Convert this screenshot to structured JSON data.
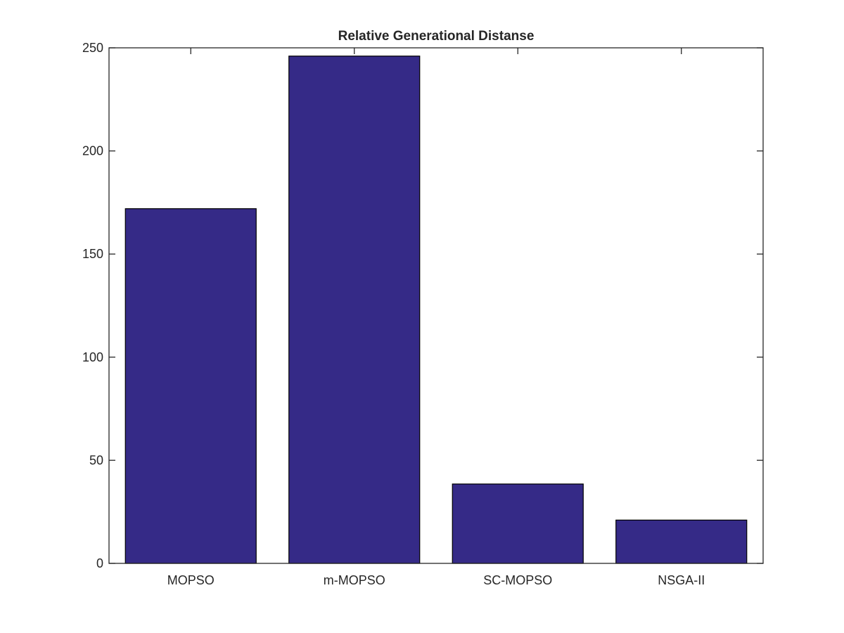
{
  "chart_data": {
    "type": "bar",
    "title": "Relative Generational Distanse",
    "xlabel": "",
    "ylabel": "",
    "categories": [
      "MOPSO",
      "m-MOPSO",
      "SC-MOPSO",
      "NSGA-II"
    ],
    "values": [
      172,
      246,
      38.5,
      21
    ],
    "ylim": [
      0,
      250
    ],
    "yticks": [
      0,
      50,
      100,
      150,
      200,
      250
    ],
    "grid": false,
    "legend": "none",
    "colors": {
      "bar_fill": "#352A87",
      "bar_edge": "#000000",
      "axes": "#262626",
      "background": "#FFFFFF"
    }
  }
}
